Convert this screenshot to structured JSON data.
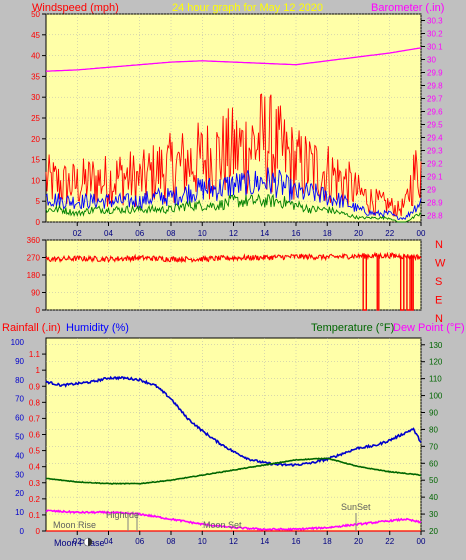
{
  "header": {
    "left_label": "Windspeed (mph)",
    "center_label": "24 hour graph for   May 12 2020",
    "right_label": "Barometer (.in)"
  },
  "lower_header": {
    "rainfall_label": "Rainfall (.in)",
    "humidity_label": "Humidity (%)",
    "temperature_label": "Temperature (°F)",
    "dewpoint_label": "Dew Point (°F)"
  },
  "annotations": {
    "hightide": "Hightide",
    "moon_rise": "Moon Rise",
    "moon_set": "Moon Set",
    "sunset": "SunSet",
    "moon_phase": "Moon Phase"
  },
  "colors": {
    "plot_bg": "#ffffa8",
    "frame_bg": "#c0c0c0",
    "wind_gust": "#ff0000",
    "wind_avg": "#0000ff",
    "wind_low": "#008000",
    "barometer": "#ff00ff",
    "direction": "#ff0000",
    "humidity": "#0000cc",
    "temperature": "#006600",
    "dewpoint": "#ff00ff",
    "rainfall": "#ff0000",
    "header_yellow": "#ffff00"
  },
  "chart_data": [
    {
      "type": "line",
      "name": "wind_barometer",
      "x_ticks": [
        "02",
        "04",
        "06",
        "08",
        "10",
        "12",
        "14",
        "16",
        "18",
        "20",
        "22",
        "00"
      ],
      "left_axis": {
        "ticks": [
          "0",
          "5",
          "10",
          "15",
          "20",
          "25",
          "30",
          "35",
          "40",
          "45",
          "50"
        ],
        "ylim": [
          0,
          50
        ]
      },
      "right_axis": {
        "ticks": [
          "28.8",
          "28.9",
          "29",
          "29.1",
          "29.2",
          "29.3",
          "29.4",
          "29.5",
          "29.6",
          "29.7",
          "29.8",
          "29.9",
          "30",
          "30.1",
          "30.2",
          "30.3"
        ],
        "ylim": [
          28.75,
          30.35
        ]
      },
      "series": [
        {
          "key": "gust",
          "axis": "left",
          "x": [
            0,
            1,
            2,
            3,
            4,
            5,
            6,
            7,
            8,
            9,
            10,
            11,
            12,
            13,
            14,
            15,
            16,
            17,
            18,
            19,
            20,
            21,
            22,
            22.5,
            23,
            23.5,
            24
          ],
          "values": [
            10,
            9,
            9,
            10,
            10,
            11,
            10,
            12,
            13,
            14,
            15,
            16,
            17,
            18,
            20,
            17,
            14,
            13,
            12,
            10,
            7,
            5,
            4,
            3,
            4,
            11,
            13
          ]
        },
        {
          "key": "avg",
          "axis": "left",
          "x": [
            0,
            1,
            2,
            3,
            4,
            5,
            6,
            7,
            8,
            9,
            10,
            11,
            12,
            13,
            14,
            15,
            16,
            17,
            18,
            19,
            20,
            21,
            22,
            22.5,
            23,
            23.5,
            24
          ],
          "values": [
            6,
            5,
            5,
            5,
            5,
            5,
            5,
            6,
            6,
            7,
            8,
            8,
            9,
            9,
            10,
            9,
            7,
            7,
            6,
            5,
            3,
            2,
            2,
            1,
            1,
            3,
            5
          ]
        },
        {
          "key": "low",
          "axis": "left",
          "x": [
            0,
            1,
            2,
            3,
            4,
            5,
            6,
            7,
            8,
            9,
            10,
            11,
            12,
            13,
            14,
            15,
            16,
            17,
            18,
            19,
            20,
            21,
            22,
            22.5,
            23,
            23.5,
            24
          ],
          "values": [
            3,
            3,
            2,
            3,
            3,
            3,
            3,
            3,
            3,
            4,
            4,
            4,
            5,
            5,
            5,
            5,
            4,
            3,
            3,
            2,
            1,
            1,
            1,
            0,
            0,
            1,
            2
          ]
        },
        {
          "key": "barometer",
          "axis": "right",
          "x": [
            0,
            2,
            4,
            6,
            8,
            10,
            12,
            14,
            16,
            18,
            20,
            22,
            24
          ],
          "values": [
            29.91,
            29.92,
            29.94,
            29.96,
            29.98,
            29.99,
            29.98,
            29.97,
            29.96,
            29.99,
            30.02,
            30.05,
            30.09
          ]
        }
      ]
    },
    {
      "type": "line",
      "name": "wind_direction",
      "left_axis": {
        "ticks": [
          "0",
          "90",
          "180",
          "270",
          "360"
        ],
        "ylim": [
          0,
          360
        ]
      },
      "right_axis_labels": [
        "N",
        "W",
        "S",
        "E",
        "N"
      ],
      "series": [
        {
          "key": "direction",
          "x": [
            0,
            2,
            4,
            6,
            8,
            10,
            12,
            14,
            16,
            18,
            20,
            22,
            24
          ],
          "values": [
            260,
            265,
            262,
            268,
            262,
            262,
            268,
            270,
            275,
            272,
            278,
            280,
            272
          ]
        }
      ]
    },
    {
      "type": "line",
      "name": "temp_humidity",
      "x_ticks": [
        "02",
        "04",
        "06",
        "08",
        "10",
        "12",
        "14",
        "16",
        "18",
        "20",
        "22",
        "00"
      ],
      "rainfall_axis": {
        "ticks": [
          "0",
          "0.1",
          "0.2",
          "0.3",
          "0.4",
          "0.5",
          "0.6",
          "0.7",
          "0.8",
          "0.9",
          "1",
          "1.1"
        ],
        "ylim": [
          0,
          1.2
        ]
      },
      "humidity_axis": {
        "ticks": [
          "0",
          "10",
          "20",
          "30",
          "40",
          "50",
          "60",
          "70",
          "80",
          "90",
          "100"
        ],
        "ylim": [
          0,
          100
        ]
      },
      "temperature_axis": {
        "ticks": [
          "20",
          "30",
          "40",
          "50",
          "60",
          "70",
          "80",
          "90",
          "100",
          "110",
          "120",
          "130"
        ],
        "ylim": [
          20,
          134
        ]
      },
      "series": [
        {
          "key": "humidity",
          "axis": "humidity",
          "x": [
            0,
            1,
            2,
            3,
            4,
            5,
            6,
            7,
            8,
            9,
            10,
            11,
            12,
            13,
            14,
            15,
            16,
            17,
            18,
            19,
            20,
            21,
            22,
            23,
            23.5,
            24
          ],
          "values": [
            79,
            77,
            78,
            79,
            81,
            81,
            80,
            77,
            70,
            60,
            53,
            47,
            42,
            38,
            36,
            35,
            35,
            36,
            38,
            41,
            44,
            45,
            48,
            52,
            54,
            47
          ]
        },
        {
          "key": "temperature",
          "axis": "temperature",
          "x": [
            0,
            2,
            4,
            6,
            8,
            10,
            12,
            14,
            16,
            18,
            20,
            22,
            24
          ],
          "values": [
            51,
            49,
            48,
            48,
            50,
            53,
            56,
            59,
            62,
            63,
            58,
            55,
            53
          ]
        },
        {
          "key": "dewpoint",
          "axis": "temperature",
          "x": [
            0,
            2,
            4,
            6,
            8,
            10,
            12,
            14,
            16,
            18,
            20,
            22,
            23,
            24
          ],
          "values": [
            32,
            31,
            31,
            30,
            27,
            24,
            22,
            21,
            21,
            22,
            24,
            26,
            27,
            25
          ]
        },
        {
          "key": "rainfall",
          "axis": "rainfall",
          "x": [
            0,
            24
          ],
          "values": [
            0,
            0
          ]
        }
      ]
    }
  ]
}
